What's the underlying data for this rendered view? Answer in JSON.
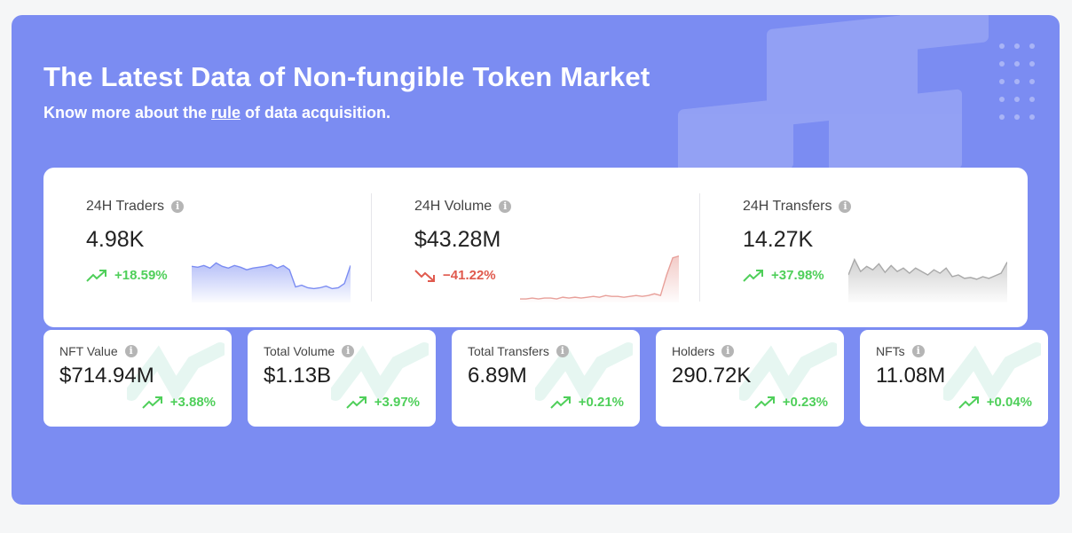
{
  "header": {
    "title": "The Latest Data of Non-fungible Token Market",
    "subtitle_before": "Know more about the ",
    "subtitle_link": "rule",
    "subtitle_after": " of data acquisition."
  },
  "stats": [
    {
      "label": "24H Traders",
      "value": "4.98K",
      "change": "+18.59%",
      "trend": "up",
      "spark_color": "#7b8cf2",
      "series": [
        40,
        39,
        41,
        38,
        44,
        40,
        38,
        41,
        39,
        36,
        38,
        39,
        40,
        42,
        38,
        41,
        36,
        16,
        18,
        15,
        14,
        15,
        17,
        14,
        15,
        20,
        41
      ]
    },
    {
      "label": "24H Volume",
      "value": "$43.28M",
      "change": "−41.22%",
      "trend": "down",
      "spark_color": "#e8a09a",
      "series": [
        2,
        2,
        3,
        2,
        3,
        3,
        2,
        4,
        3,
        4,
        3,
        4,
        5,
        4,
        6,
        5,
        5,
        4,
        5,
        6,
        5,
        6,
        8,
        6,
        30,
        50,
        52
      ]
    },
    {
      "label": "24H Transfers",
      "value": "14.27K",
      "change": "+37.98%",
      "trend": "up",
      "spark_color": "#a9a9a9",
      "series": [
        30,
        48,
        34,
        40,
        36,
        43,
        33,
        41,
        34,
        38,
        32,
        38,
        34,
        30,
        36,
        32,
        38,
        28,
        30,
        26,
        27,
        25,
        28,
        26,
        29,
        32,
        45
      ]
    }
  ],
  "cards": [
    {
      "label": "NFT Value",
      "value": "$714.94M",
      "change": "+3.88%"
    },
    {
      "label": "Total Volume",
      "value": "$1.13B",
      "change": "+3.97%"
    },
    {
      "label": "Total Transfers",
      "value": "6.89M",
      "change": "+0.21%"
    },
    {
      "label": "Holders",
      "value": "290.72K",
      "change": "+0.23%"
    },
    {
      "label": "NFTs",
      "value": "11.08M",
      "change": "+0.04%"
    }
  ],
  "icons": {
    "info": "info-icon",
    "trend_up": "trend-up-icon",
    "trend_down": "trend-down-icon"
  },
  "colors": {
    "panel": "#7b8cf2",
    "up": "#4fcf5a",
    "down": "#e05a4e"
  }
}
